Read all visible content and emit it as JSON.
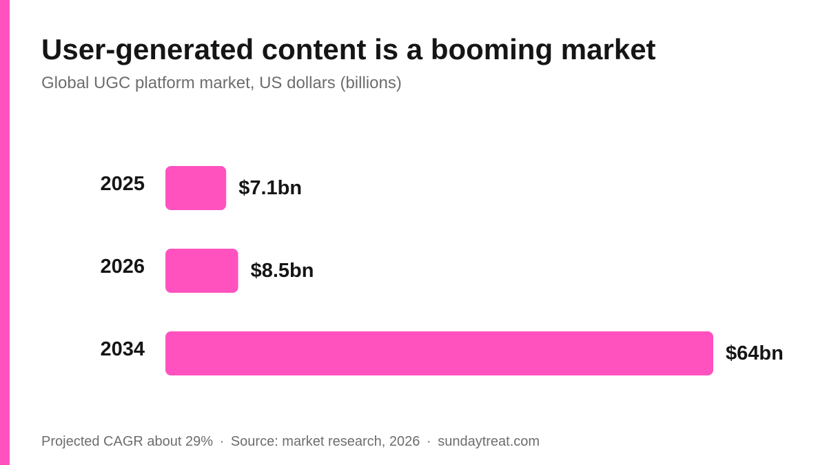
{
  "colors": {
    "accent": "#ff52bf",
    "text": "#151515",
    "muted": "#6d6d6d"
  },
  "header": {
    "title": "User-generated content is a booming market",
    "subtitle": "Global UGC platform market, US dollars (billions)"
  },
  "footer": {
    "note": "Projected CAGR about 29%",
    "separator": "·",
    "source": "Source: market research, 2026",
    "site": "sundaytreat.com"
  },
  "chart_data": {
    "type": "bar",
    "orientation": "horizontal",
    "categories": [
      "2025",
      "2026",
      "2034"
    ],
    "values": [
      7.1,
      8.5,
      64
    ],
    "value_labels": [
      "$7.1bn",
      "$8.5bn",
      "$64bn"
    ],
    "unit": "US dollars (billions)",
    "title": "User-generated content is a booming market",
    "subtitle": "Global UGC platform market, US dollars (billions)",
    "xlim": [
      0,
      64
    ],
    "grid": false,
    "legend": false
  }
}
